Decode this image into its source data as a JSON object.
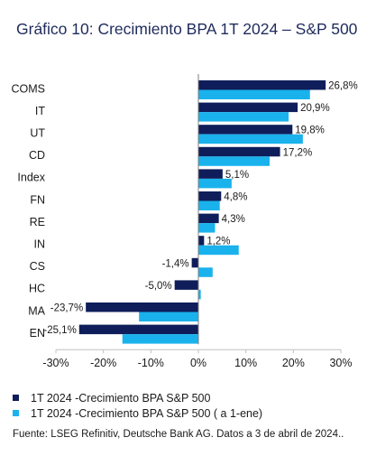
{
  "chart_data": {
    "type": "bar",
    "orientation": "horizontal",
    "title": "Gráfico 10: Crecimiento BPA 1T 2024 – S&P 500",
    "categories": [
      "COMS",
      "IT",
      "UT",
      "CD",
      "Index",
      "FN",
      "RE",
      "IN",
      "CS",
      "HC",
      "MA",
      "EN"
    ],
    "series": [
      {
        "name": "1T 2024 -Crecimiento BPA S&P 500",
        "color": "#0f1d5a",
        "values": [
          26.8,
          20.9,
          19.8,
          17.2,
          5.1,
          4.8,
          4.3,
          1.2,
          -1.4,
          -5.0,
          -23.7,
          -25.1
        ],
        "labels": [
          "26,8%",
          "20,9%",
          "19,8%",
          "17,2%",
          "5,1%",
          "4,8%",
          "4,3%",
          "1,2%",
          "-1,4%",
          "-5,0%",
          "-23,7%",
          "-25,1%"
        ]
      },
      {
        "name": "1T 2024 -Crecimiento BPA S&P 500 ( a 1-ene)",
        "color": "#1ab2ec",
        "values": [
          23.5,
          19.0,
          22.0,
          15.0,
          7.0,
          4.5,
          3.5,
          8.5,
          3.0,
          0.5,
          -12.5,
          -16.0
        ]
      }
    ],
    "xlim": [
      -30,
      30
    ],
    "xticks": [
      -30,
      -20,
      -10,
      0,
      10,
      20,
      30
    ],
    "xtick_labels": [
      "-30%",
      "-20%",
      "-10%",
      "0%",
      "10%",
      "20%",
      "30%"
    ],
    "grid": false,
    "legend": "bottom-left"
  },
  "source": "Fuente: LSEG Refinitiv, Deutsche Bank AG. Datos a 3 de abril de 2024.."
}
